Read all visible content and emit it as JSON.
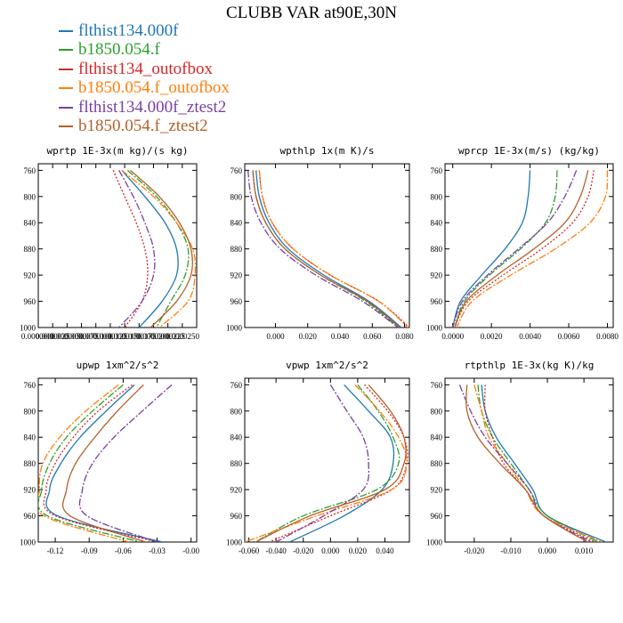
{
  "title": "CLUBB VAR at90E,30N",
  "legend": [
    {
      "label": "flthist134.000f",
      "color": "#1f77b4",
      "dash": "none"
    },
    {
      "label": "b1850.054.f",
      "color": "#2ca02c",
      "dash": "8,2,2,2"
    },
    {
      "label": "flthist134_outofbox",
      "color": "#d62728",
      "dash": "2,2"
    },
    {
      "label": "b1850.054.f_outofbox",
      "color": "#ff7f0e",
      "dash": "8,2,2,2"
    },
    {
      "label": "flthist134.000f_ztest2",
      "color": "#7b3fa0",
      "dash": "8,2,2,2"
    },
    {
      "label": "b1850.054.f_ztest2",
      "color": "#b5602b",
      "dash": "none"
    }
  ],
  "chart_data": [
    {
      "type": "line",
      "title": "wprtp  1E-3x(m kg)/(s kg)",
      "xlim": [
        0.0,
        2.75e-05
      ],
      "ylim": [
        750,
        1000
      ],
      "yticks": [
        760,
        800,
        840,
        880,
        920,
        960,
        1000
      ],
      "xticks": [
        0.0,
        2.5e-06,
        5e-06,
        7.5e-06,
        1e-05,
        1.25e-05,
        1.5e-05,
        1.75e-05,
        2e-05,
        2.25e-05,
        2.5e-05
      ],
      "xticklabels": [
        "0.0000000",
        "0.0000025",
        "0.0000050",
        "0.0000075",
        "0.0000100",
        "0.0000125",
        "0.0000150",
        "0.0000175",
        "0.0000200",
        "0.0000225",
        "0.0000250"
      ],
      "y": [
        760,
        800,
        840,
        880,
        920,
        960,
        1000
      ],
      "series": [
        {
          "values": [
            1.45e-05,
            1.85e-05,
            2.2e-05,
            2.4e-05,
            2.4e-05,
            2.15e-05,
            1.75e-05
          ]
        },
        {
          "values": [
            1.55e-05,
            2.05e-05,
            2.4e-05,
            2.6e-05,
            2.55e-05,
            2.3e-05,
            2.05e-05
          ]
        },
        {
          "values": [
            1.3e-05,
            1.5e-05,
            1.7e-05,
            1.85e-05,
            1.9e-05,
            1.8e-05,
            1.5e-05
          ]
        },
        {
          "values": [
            1.45e-05,
            2e-05,
            2.4e-05,
            2.68e-05,
            2.72e-05,
            2.6e-05,
            2.1e-05
          ]
        },
        {
          "values": [
            1.4e-05,
            1.65e-05,
            1.85e-05,
            2e-05,
            2e-05,
            1.8e-05,
            1.4e-05
          ]
        },
        {
          "values": [
            1.6e-05,
            2.1e-05,
            2.45e-05,
            2.65e-05,
            2.65e-05,
            2.4e-05,
            1.95e-05
          ]
        }
      ]
    },
    {
      "type": "line",
      "title": "wpthlp  1x(m K)/s",
      "xlim": [
        -0.019,
        0.083
      ],
      "ylim": [
        750,
        1000
      ],
      "yticks": [
        760,
        800,
        840,
        880,
        920,
        960,
        1000
      ],
      "xticks": [
        0.0,
        0.02,
        0.04,
        0.06,
        0.08
      ],
      "xticklabels": [
        "0.000",
        "0.020",
        "0.040",
        "0.060",
        "0.080"
      ],
      "y": [
        760,
        800,
        840,
        880,
        920,
        960,
        1000
      ],
      "series": [
        {
          "values": [
            -0.012,
            -0.01,
            -0.004,
            0.008,
            0.03,
            0.058,
            0.078
          ]
        },
        {
          "values": [
            -0.014,
            -0.012,
            -0.006,
            0.006,
            0.028,
            0.056,
            0.076
          ]
        },
        {
          "values": [
            -0.01,
            -0.008,
            -0.002,
            0.011,
            0.034,
            0.064,
            0.083
          ]
        },
        {
          "values": [
            -0.01,
            -0.008,
            -0.002,
            0.011,
            0.034,
            0.064,
            0.082
          ]
        },
        {
          "values": [
            -0.017,
            -0.015,
            -0.009,
            0.003,
            0.025,
            0.054,
            0.076
          ]
        },
        {
          "values": [
            -0.014,
            -0.012,
            -0.006,
            0.006,
            0.028,
            0.057,
            0.077
          ]
        }
      ]
    },
    {
      "type": "line",
      "title": "wprcp  1E-3x(m/s) (kg/kg)",
      "xlim": [
        -0.0004,
        0.0083
      ],
      "ylim": [
        750,
        1000
      ],
      "yticks": [
        760,
        800,
        840,
        880,
        920,
        960,
        1000
      ],
      "xticks": [
        0.0,
        0.002,
        0.004,
        0.006,
        0.008
      ],
      "xticklabels": [
        "0.0000",
        "0.0020",
        "0.0040",
        "0.0060",
        "0.0080"
      ],
      "y": [
        760,
        800,
        840,
        880,
        920,
        960,
        1000
      ],
      "series": [
        {
          "values": [
            0.004,
            0.0039,
            0.0036,
            0.0027,
            0.0015,
            0.0004,
            0.0
          ]
        },
        {
          "values": [
            0.0054,
            0.0053,
            0.0048,
            0.0035,
            0.0019,
            0.0006,
            0.0001
          ]
        },
        {
          "values": [
            0.0073,
            0.007,
            0.0062,
            0.0046,
            0.0026,
            0.0008,
            0.0001
          ]
        },
        {
          "values": [
            0.008,
            0.0079,
            0.0071,
            0.0053,
            0.003,
            0.001,
            0.0002
          ]
        },
        {
          "values": [
            0.0064,
            0.0058,
            0.0049,
            0.0034,
            0.0018,
            0.0005,
            0.0
          ]
        },
        {
          "values": [
            0.007,
            0.0066,
            0.0058,
            0.0042,
            0.0023,
            0.0007,
            0.0001
          ]
        }
      ]
    },
    {
      "type": "line",
      "title": "upwp  1xm^2/s^2",
      "xlim": [
        -0.135,
        0.005
      ],
      "ylim": [
        750,
        1000
      ],
      "yticks": [
        760,
        800,
        840,
        880,
        920,
        960,
        1000
      ],
      "xticks": [
        -0.12,
        -0.09,
        -0.06,
        -0.03,
        0.0
      ],
      "xticklabels": [
        "-0.12",
        "-0.09",
        "-0.06",
        "-0.03",
        "-0.00"
      ],
      "y": [
        760,
        800,
        840,
        880,
        920,
        960,
        1000
      ],
      "series": [
        {
          "values": [
            -0.05,
            -0.075,
            -0.098,
            -0.115,
            -0.125,
            -0.118,
            -0.025
          ]
        },
        {
          "values": [
            -0.06,
            -0.087,
            -0.11,
            -0.125,
            -0.132,
            -0.127,
            -0.045
          ]
        },
        {
          "values": [
            -0.052,
            -0.082,
            -0.104,
            -0.12,
            -0.128,
            -0.12,
            -0.03
          ]
        },
        {
          "values": [
            -0.064,
            -0.093,
            -0.116,
            -0.131,
            -0.134,
            -0.13,
            -0.055
          ]
        },
        {
          "values": [
            -0.017,
            -0.043,
            -0.068,
            -0.087,
            -0.096,
            -0.092,
            -0.03
          ]
        },
        {
          "values": [
            -0.042,
            -0.065,
            -0.085,
            -0.102,
            -0.11,
            -0.107,
            -0.04
          ]
        }
      ]
    },
    {
      "type": "line",
      "title": "vpwp  1xm^2/s^2",
      "xlim": [
        -0.063,
        0.058
      ],
      "ylim": [
        750,
        1000
      ],
      "yticks": [
        760,
        800,
        840,
        880,
        920,
        960,
        1000
      ],
      "xticks": [
        -0.06,
        -0.04,
        -0.02,
        0.0,
        0.02,
        0.04
      ],
      "xticklabels": [
        "-0.060",
        "-0.040",
        "-0.020",
        "0.000",
        "0.020",
        "0.040"
      ],
      "y": [
        760,
        800,
        840,
        880,
        920,
        960,
        1000
      ],
      "series": [
        {
          "values": [
            0.01,
            0.028,
            0.044,
            0.046,
            0.038,
            0.01,
            -0.03
          ]
        },
        {
          "values": [
            0.02,
            0.035,
            0.046,
            0.05,
            0.034,
            -0.02,
            -0.055
          ]
        },
        {
          "values": [
            0.025,
            0.042,
            0.054,
            0.056,
            0.045,
            0.0,
            -0.045
          ]
        },
        {
          "values": [
            0.018,
            0.036,
            0.05,
            0.056,
            0.045,
            -0.01,
            -0.063
          ]
        },
        {
          "values": [
            0.0,
            0.012,
            0.024,
            0.028,
            0.024,
            -0.005,
            -0.04
          ]
        },
        {
          "values": [
            0.028,
            0.044,
            0.054,
            0.054,
            0.04,
            -0.015,
            -0.055
          ]
        }
      ]
    },
    {
      "type": "line",
      "title": "rtpthlp  1E-3x(kg K)/kg",
      "xlim": [
        -0.028,
        0.018
      ],
      "ylim": [
        750,
        1000
      ],
      "yticks": [
        760,
        800,
        840,
        880,
        920,
        960,
        1000
      ],
      "xticks": [
        -0.02,
        -0.01,
        0.0,
        0.01
      ],
      "xticklabels": [
        "-0.020",
        "-0.010",
        "0.000",
        "0.010"
      ],
      "y": [
        760,
        800,
        840,
        880,
        920,
        960,
        1000
      ],
      "series": [
        {
          "values": [
            -0.018,
            -0.017,
            -0.014,
            -0.009,
            -0.004,
            0.0,
            0.016
          ]
        },
        {
          "values": [
            -0.019,
            -0.018,
            -0.015,
            -0.01,
            -0.005,
            0.0,
            0.014
          ]
        },
        {
          "values": [
            -0.017,
            -0.017,
            -0.015,
            -0.012,
            -0.006,
            -0.001,
            0.013
          ]
        },
        {
          "values": [
            -0.02,
            -0.018,
            -0.016,
            -0.011,
            -0.006,
            -0.001,
            0.015
          ]
        },
        {
          "values": [
            -0.024,
            -0.021,
            -0.017,
            -0.011,
            -0.005,
            -0.001,
            0.012
          ]
        },
        {
          "values": [
            -0.022,
            -0.022,
            -0.019,
            -0.013,
            -0.006,
            -0.001,
            0.011
          ]
        }
      ]
    }
  ]
}
